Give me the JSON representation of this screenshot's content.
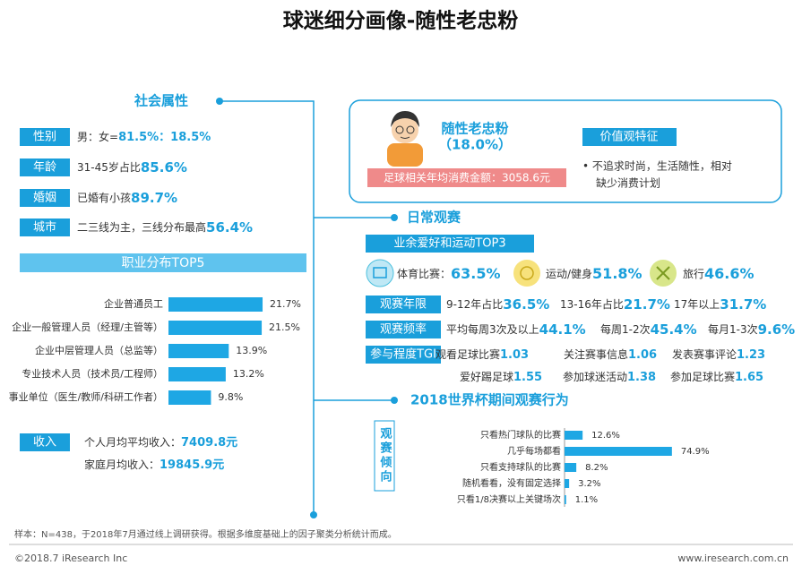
{
  "title": "球迷细分画像-随性老忠粉",
  "social": {
    "heading": "社会属性",
    "attributes": [
      {
        "label": "性别",
        "prefix": "男：女=",
        "highlight": "81.5%：18.5%"
      },
      {
        "label": "年龄",
        "prefix": "31-45岁占比",
        "highlight": "85.6%"
      },
      {
        "label": "婚姻",
        "prefix": "已婚有小孩",
        "highlight": "89.7%"
      },
      {
        "label": "城市",
        "prefix": "二三线为主，三线分布最高",
        "highlight": "56.4%"
      }
    ],
    "occupation": {
      "title": "职业分布TOP5",
      "categories": [
        "企业普通员工",
        "企业一般管理人员（经理/主管等）",
        "企业中层管理人员（总监等）",
        "专业技术人员（技术员/工程师）",
        "事业单位（医生/教师/科研工作者）"
      ],
      "values": [
        21.7,
        21.5,
        13.9,
        13.2,
        9.8
      ],
      "value_labels": [
        "21.7%",
        "21.5%",
        "13.9%",
        "13.2%",
        "9.8%"
      ],
      "color": "#1ea7e4"
    },
    "income": {
      "label": "收入",
      "items": [
        {
          "prefix": "个人月均平均收入：",
          "highlight": "7409.8元"
        },
        {
          "prefix": "家庭月均收入：",
          "highlight": "19845.9元"
        }
      ]
    }
  },
  "profile": {
    "name": "随性老忠粉",
    "share": "（18.0%）",
    "spending": "足球相关年均消费金额：3058.6元",
    "values_title": "价值观特征",
    "values_text": [
      "•  不追求时尚，生活随性，相对",
      "缺少消费计划"
    ]
  },
  "daily": {
    "heading": "日常观赛",
    "hobbies_title": "业余爱好和运动TOP3",
    "hobbies": [
      {
        "prefix": "体育比赛：",
        "highlight": "63.5%"
      },
      {
        "prefix": "运动/健身",
        "highlight": "51.8%"
      },
      {
        "prefix": "旅行",
        "highlight": "46.6%"
      }
    ],
    "rows": [
      {
        "label": "观赛年限",
        "items": [
          {
            "prefix": "9-12年占比",
            "highlight": "36.5%"
          },
          {
            "prefix": "13-16年占比",
            "highlight": "21.7%"
          },
          {
            "prefix": "17年以上",
            "highlight": "31.7%"
          }
        ]
      },
      {
        "label": "观赛频率",
        "items": [
          {
            "prefix": "平均每周3次及以上",
            "highlight": "44.1%"
          },
          {
            "prefix": "每周1-2次",
            "highlight": "45.4%"
          },
          {
            "prefix": "每月1-3次",
            "highlight": "9.6%"
          }
        ]
      },
      {
        "label": "参与程度TGI",
        "items": [
          {
            "prefix": "观看足球比赛",
            "highlight": "1.03"
          },
          {
            "prefix": "关注赛事信息",
            "highlight": "1.06"
          },
          {
            "prefix": "发表赛事评论",
            "highlight": "1.23"
          },
          {
            "prefix": "爱好踢足球",
            "highlight": "1.55"
          },
          {
            "prefix": "参加球迷活动",
            "highlight": "1.38"
          },
          {
            "prefix": "参加足球比赛",
            "highlight": "1.65"
          }
        ]
      }
    ]
  },
  "world_cup": {
    "heading": "2018世界杯期间观赛行为",
    "side_label": "观赛倾向",
    "categories": [
      "只看热门球队的比赛",
      "几乎每场都看",
      "只看支持球队的比赛",
      "随机看看，没有固定选择",
      "只看1/8决赛以上关键场次"
    ],
    "values": [
      12.6,
      74.9,
      8.2,
      3.2,
      1.1
    ],
    "value_labels": [
      "12.6%",
      "74.9%",
      "8.2%",
      "3.2%",
      "1.1%"
    ],
    "color": "#1ea7e4"
  },
  "footer": {
    "note": "样本：N=438，于2018年7月通过线上调研获得。根据多维度基础上的因子聚类分析统计而成。",
    "copyright": "©2018.7 iResearch Inc",
    "website": "www.iresearch.com.cn"
  }
}
